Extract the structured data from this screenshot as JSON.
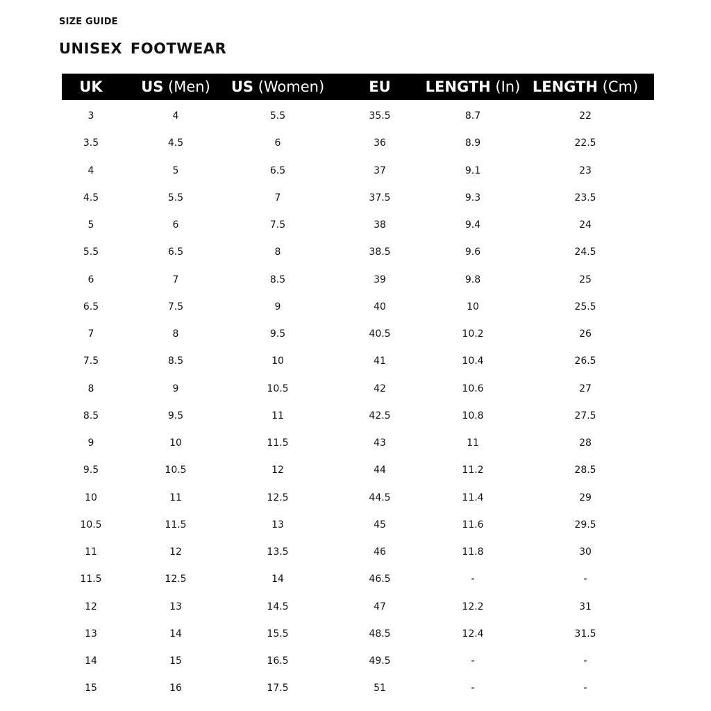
{
  "eyebrow": "SIZE GUIDE",
  "title": "UNISEX  FOOTWEAR",
  "columns": [
    {
      "bold": "UK",
      "normal": ""
    },
    {
      "bold": "US",
      "normal": " (Men)"
    },
    {
      "bold": "US",
      "normal": " (Women)"
    },
    {
      "bold": "EU",
      "normal": ""
    },
    {
      "bold": "LENGTH",
      "normal": " (In)"
    },
    {
      "bold": "LENGTH",
      "normal": " (Cm)"
    }
  ],
  "rows": [
    [
      "3",
      "4",
      "5.5",
      "35.5",
      "8.7",
      "22"
    ],
    [
      "3.5",
      "4.5",
      "6",
      "36",
      "8.9",
      "22.5"
    ],
    [
      "4",
      "5",
      "6.5",
      "37",
      "9.1",
      "23"
    ],
    [
      "4.5",
      "5.5",
      "7",
      "37.5",
      "9.3",
      "23.5"
    ],
    [
      "5",
      "6",
      "7.5",
      "38",
      "9.4",
      "24"
    ],
    [
      "5.5",
      "6.5",
      "8",
      "38.5",
      "9.6",
      "24.5"
    ],
    [
      "6",
      "7",
      "8.5",
      "39",
      "9.8",
      "25"
    ],
    [
      "6.5",
      "7.5",
      "9",
      "40",
      "10",
      "25.5"
    ],
    [
      "7",
      "8",
      "9.5",
      "40.5",
      "10.2",
      "26"
    ],
    [
      "7.5",
      "8.5",
      "10",
      "41",
      "10.4",
      "26.5"
    ],
    [
      "8",
      "9",
      "10.5",
      "42",
      "10.6",
      "27"
    ],
    [
      "8.5",
      "9.5",
      "11",
      "42.5",
      "10.8",
      "27.5"
    ],
    [
      "9",
      "10",
      "11.5",
      "43",
      "11",
      "28"
    ],
    [
      "9.5",
      "10.5",
      "12",
      "44",
      "11.2",
      "28.5"
    ],
    [
      "10",
      "11",
      "12.5",
      "44.5",
      "11.4",
      "29"
    ],
    [
      "10.5",
      "11.5",
      "13",
      "45",
      "11.6",
      "29.5"
    ],
    [
      "11",
      "12",
      "13.5",
      "46",
      "11.8",
      "30"
    ],
    [
      "11.5",
      "12.5",
      "14",
      "46.5",
      "-",
      "-"
    ],
    [
      "12",
      "13",
      "14.5",
      "47",
      "12.2",
      "31"
    ],
    [
      "13",
      "14",
      "15.5",
      "48.5",
      "12.4",
      "31.5"
    ],
    [
      "14",
      "15",
      "16.5",
      "49.5",
      "-",
      "-"
    ],
    [
      "15",
      "16",
      "17.5",
      "51",
      "-",
      "-"
    ]
  ]
}
